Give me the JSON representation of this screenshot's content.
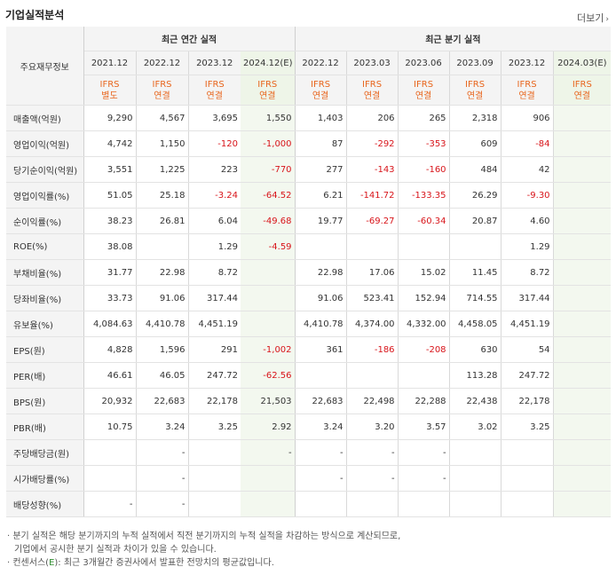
{
  "title": "기업실적분석",
  "more_label": "더보기",
  "header": {
    "row_label": "주요재무정보",
    "annual_group": "최근 연간 실적",
    "quarter_group": "최근 분기 실적",
    "periods": [
      "2021.12",
      "2022.12",
      "2023.12",
      "2024.12(E)",
      "2022.12",
      "2023.03",
      "2023.06",
      "2023.09",
      "2023.12",
      "2024.03(E)"
    ],
    "ifrs": [
      "IFRS",
      "IFRS",
      "IFRS",
      "IFRS",
      "IFRS",
      "IFRS",
      "IFRS",
      "IFRS",
      "IFRS",
      "IFRS"
    ],
    "basis": [
      "별도",
      "연결",
      "연결",
      "연결",
      "연결",
      "연결",
      "연결",
      "연결",
      "연결",
      "연결"
    ]
  },
  "rows": [
    {
      "label": "매출액(억원)",
      "values": [
        "9,290",
        "4,567",
        "3,695",
        "1,550",
        "1,403",
        "206",
        "265",
        "2,318",
        "906",
        ""
      ]
    },
    {
      "label": "영업이익(억원)",
      "values": [
        "4,742",
        "1,150",
        "-120",
        "-1,000",
        "87",
        "-292",
        "-353",
        "609",
        "-84",
        ""
      ]
    },
    {
      "label": "당기순이익(억원)",
      "values": [
        "3,551",
        "1,225",
        "223",
        "-770",
        "277",
        "-143",
        "-160",
        "484",
        "42",
        ""
      ]
    },
    {
      "label": "영업이익률(%)",
      "values": [
        "51.05",
        "25.18",
        "-3.24",
        "-64.52",
        "6.21",
        "-141.72",
        "-133.35",
        "26.29",
        "-9.30",
        ""
      ]
    },
    {
      "label": "순이익률(%)",
      "values": [
        "38.23",
        "26.81",
        "6.04",
        "-49.68",
        "19.77",
        "-69.27",
        "-60.34",
        "20.87",
        "4.60",
        ""
      ]
    },
    {
      "label": "ROE(%)",
      "values": [
        "38.08",
        "",
        "1.29",
        "-4.59",
        "",
        "",
        "",
        "",
        "1.29",
        ""
      ]
    },
    {
      "label": "부채비율(%)",
      "values": [
        "31.77",
        "22.98",
        "8.72",
        "",
        "22.98",
        "17.06",
        "15.02",
        "11.45",
        "8.72",
        ""
      ]
    },
    {
      "label": "당좌비율(%)",
      "values": [
        "33.73",
        "91.06",
        "317.44",
        "",
        "91.06",
        "523.41",
        "152.94",
        "714.55",
        "317.44",
        ""
      ]
    },
    {
      "label": "유보율(%)",
      "values": [
        "4,084.63",
        "4,410.78",
        "4,451.19",
        "",
        "4,410.78",
        "4,374.00",
        "4,332.00",
        "4,458.05",
        "4,451.19",
        ""
      ]
    },
    {
      "label": "EPS(원)",
      "values": [
        "4,828",
        "1,596",
        "291",
        "-1,002",
        "361",
        "-186",
        "-208",
        "630",
        "54",
        ""
      ]
    },
    {
      "label": "PER(배)",
      "values": [
        "46.61",
        "46.05",
        "247.72",
        "-62.56",
        "",
        "",
        "",
        "113.28",
        "247.72",
        ""
      ]
    },
    {
      "label": "BPS(원)",
      "values": [
        "20,932",
        "22,683",
        "22,178",
        "21,503",
        "22,683",
        "22,498",
        "22,288",
        "22,438",
        "22,178",
        ""
      ]
    },
    {
      "label": "PBR(배)",
      "values": [
        "10.75",
        "3.24",
        "3.25",
        "2.92",
        "3.24",
        "3.20",
        "3.57",
        "3.02",
        "3.25",
        ""
      ]
    },
    {
      "label": "주당배당금(원)",
      "values": [
        "",
        "-",
        "",
        "-",
        "-",
        "-",
        "-",
        "",
        "",
        ""
      ]
    },
    {
      "label": "시가배당률(%)",
      "values": [
        "",
        "-",
        "",
        "",
        "-",
        "-",
        "-",
        "",
        "",
        ""
      ]
    },
    {
      "label": "배당성향(%)",
      "values": [
        "-",
        "-",
        "",
        "",
        "",
        "",
        "",
        "",
        "",
        ""
      ]
    }
  ],
  "notes": {
    "line1": "· 분기 실적은 해당 분기까지의 누적 실적에서 직전 분기까지의 누적 실적을 차감하는 방식으로 계산되므로,",
    "line2": "기업에서 공시한 분기 실적과 차이가 있을 수 있습니다.",
    "line3_prefix": "· 컨센서스(",
    "line3_e": "E",
    "line3_suffix": "): 최근 3개월간 증권사에서 발표한 전망치의 평균값입니다."
  }
}
